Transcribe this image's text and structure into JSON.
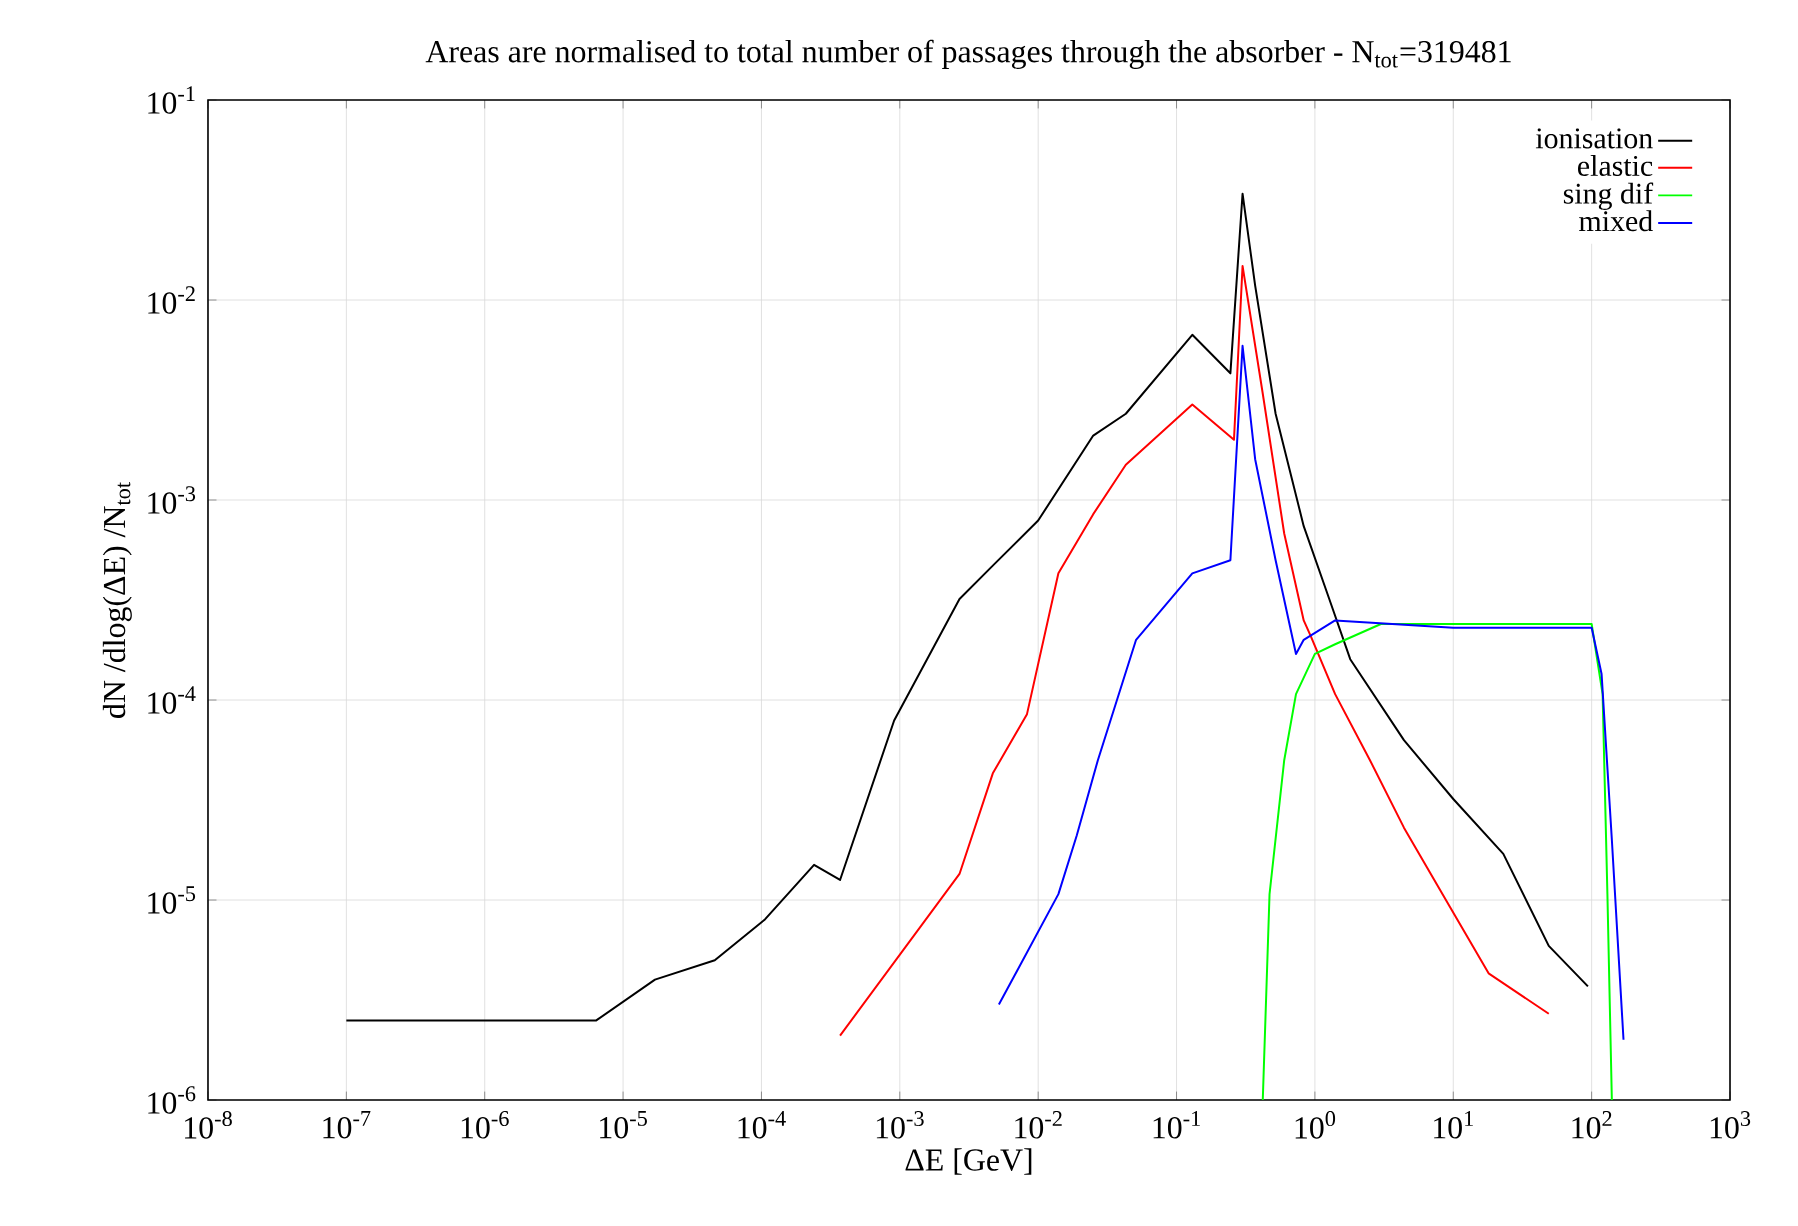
{
  "chart_data": {
    "type": "line",
    "title": "Areas are normalised to total number of passages through the absorber - N$_{tot}$=319481",
    "xlabel": "ΔE [GeV]",
    "ylabel": "dN /dlog(ΔE) /N$_{tot}$",
    "log": "xy",
    "grid": true,
    "legend": "top right",
    "marker": "none",
    "line_style": "solid",
    "xlim": [
      1e-08,
      1000
    ],
    "ylim": [
      1e-06,
      0.1
    ],
    "xticks": [
      {
        "value": 1e-08,
        "label": "10$^{-8}$"
      },
      {
        "value": 1e-07,
        "label": "10$^{-7}$"
      },
      {
        "value": 1e-06,
        "label": "10$^{-6}$"
      },
      {
        "value": 1e-05,
        "label": "10$^{-5}$"
      },
      {
        "value": 0.0001,
        "label": "10$^{-4}$"
      },
      {
        "value": 0.001,
        "label": "10$^{-3}$"
      },
      {
        "value": 0.01,
        "label": "10$^{-2}$"
      },
      {
        "value": 0.1,
        "label": "10$^{-1}$"
      },
      {
        "value": 1,
        "label": "10$^{0}$"
      },
      {
        "value": 10,
        "label": "10$^{1}$"
      },
      {
        "value": 100,
        "label": "10$^{2}$"
      },
      {
        "value": 1000,
        "label": "10$^{3}$"
      }
    ],
    "yticks": [
      {
        "value": 1e-06,
        "label": "10$^{-6}$"
      },
      {
        "value": 1e-05,
        "label": "10$^{-5}$"
      },
      {
        "value": 0.0001,
        "label": "10$^{-4}$"
      },
      {
        "value": 0.001,
        "label": "10$^{-3}$"
      },
      {
        "value": 0.01,
        "label": "10$^{-2}$"
      },
      {
        "value": 0.1,
        "label": "10$^{-1}$"
      }
    ],
    "series": [
      {
        "name": "ionisation",
        "color": "#000000",
        "x": [
          1e-07,
          1.5e-07,
          2.8e-07,
          1.2e-06,
          6.4e-06,
          1.7e-05,
          4.6e-05,
          0.000106,
          0.00024,
          0.00037,
          0.00091,
          0.0027,
          0.0047,
          0.01,
          0.025,
          0.043,
          0.13,
          0.245,
          0.3,
          0.37,
          0.52,
          0.83,
          1.27,
          1.8,
          4.4,
          10,
          23,
          49,
          94
        ],
        "values": [
          2.5e-06,
          2.5e-06,
          2.5e-06,
          2.5e-06,
          2.5e-06,
          4e-06,
          5e-06,
          8e-06,
          1.5e-05,
          1.26e-05,
          7.9e-05,
          0.00032,
          0.00047,
          0.00079,
          0.0021,
          0.0027,
          0.0067,
          0.0043,
          0.034,
          0.0118,
          0.0027,
          0.00074,
          0.00032,
          0.00016,
          6.3e-05,
          3.2e-05,
          1.7e-05,
          5.9e-06,
          3.7e-06
        ]
      },
      {
        "name": "elastic",
        "color": "#ff0000",
        "x": [
          0.00037,
          0.0027,
          0.0047,
          0.0083,
          0.014,
          0.025,
          0.043,
          0.13,
          0.26,
          0.3,
          0.42,
          0.6,
          0.83,
          0.93,
          1.4,
          2.5,
          4.4,
          9.4,
          18,
          49
        ],
        "values": [
          2.1e-06,
          1.35e-05,
          4.3e-05,
          8.5e-05,
          0.00043,
          0.00085,
          0.0015,
          0.003,
          0.002,
          0.0148,
          0.0034,
          0.00068,
          0.00025,
          0.00021,
          0.000107,
          5e-05,
          2.3e-05,
          9.3e-06,
          4.3e-06,
          2.7e-06
        ]
      },
      {
        "name": "sing dif",
        "color": "#00ff00",
        "x": [
          0.42,
          0.47,
          0.6,
          0.73,
          1,
          1.4,
          3,
          10,
          30,
          100,
          120,
          130,
          140
        ],
        "values": [
          1e-06,
          1.07e-05,
          5e-05,
          0.000107,
          0.00017,
          0.00019,
          0.00024,
          0.00024,
          0.00024,
          0.00024,
          0.000107,
          1.07e-05,
          1e-06
        ]
      },
      {
        "name": "mixed",
        "color": "#0000ff",
        "x": [
          0.0052,
          0.014,
          0.019,
          0.027,
          0.051,
          0.13,
          0.245,
          0.3,
          0.37,
          0.52,
          0.73,
          0.83,
          1.4,
          10,
          100,
          118,
          140,
          170
        ],
        "values": [
          3e-06,
          1.07e-05,
          2.1e-05,
          5e-05,
          0.0002,
          0.00043,
          0.0005,
          0.0059,
          0.0016,
          0.0005,
          0.00017,
          0.0002,
          0.00025,
          0.00023,
          0.00023,
          0.000135,
          2e-05,
          2e-06
        ]
      }
    ]
  }
}
